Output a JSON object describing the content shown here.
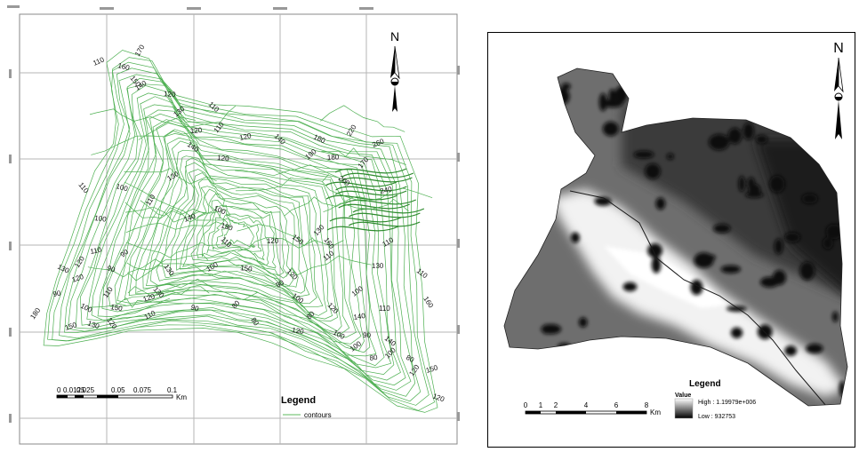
{
  "left_map": {
    "north_label": "N",
    "contour_labels": [
      "170",
      "110",
      "160",
      "150",
      "140",
      "120",
      "110",
      "130",
      "120",
      "140",
      "110",
      "120",
      "180",
      "220",
      "260",
      "100",
      "110",
      "130",
      "120",
      "140",
      "190",
      "180",
      "200",
      "170",
      "240",
      "100",
      "110",
      "140",
      "190",
      "160",
      "110",
      "100",
      "110",
      "90",
      "120",
      "150",
      "130",
      "110",
      "130",
      "120",
      "120",
      "90",
      "130",
      "100",
      "150",
      "120",
      "110",
      "130",
      "100",
      "80",
      "90",
      "100",
      "110",
      "120",
      "90",
      "80",
      "90",
      "120",
      "120",
      "100",
      "110",
      "110",
      "80",
      "140",
      "100",
      "180",
      "150",
      "130",
      "120",
      "110",
      "150",
      "130",
      "100",
      "90",
      "140",
      "100",
      "80",
      "80",
      "120",
      "150",
      "120",
      "160"
    ],
    "scale_bar": {
      "ticks": [
        "0",
        "0.0125",
        "0.025",
        "0.05",
        "0.075",
        "0.1"
      ],
      "unit": "Km"
    },
    "legend": {
      "title": "Legend",
      "items": [
        {
          "label": "contours",
          "color": "#5cb85c"
        }
      ]
    },
    "colors": {
      "contour": "#4caf50",
      "grid": "#b0b0b0",
      "frame": "#888888"
    }
  },
  "right_map": {
    "north_label": "N",
    "scale_bar": {
      "ticks": [
        "0",
        "1",
        "2",
        "4",
        "6",
        "8"
      ],
      "unit": "Km"
    },
    "legend": {
      "title": "Legend",
      "field": "Value",
      "high": "High : 1.19979e+006",
      "low": "Low : 932753"
    },
    "colors": {
      "high": "#ffffff",
      "low": "#000000",
      "frame": "#000000"
    }
  }
}
